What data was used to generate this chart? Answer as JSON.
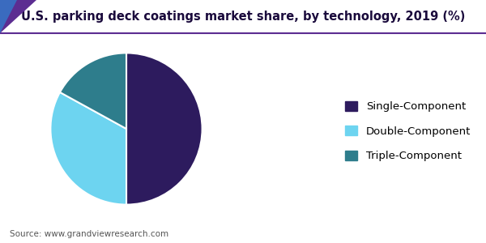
{
  "title": "U.S. parking deck coatings market share, by technology, 2019 (%)",
  "labels": [
    "Single-Component",
    "Double-Component",
    "Triple-Component"
  ],
  "values": [
    50,
    33,
    17
  ],
  "colors": [
    "#2d1b5e",
    "#6dd4f0",
    "#2e7d8c"
  ],
  "startangle": 90,
  "counterclock": false,
  "source_text": "Source: www.grandviewresearch.com",
  "title_fontsize": 10.5,
  "legend_fontsize": 9.5,
  "source_fontsize": 7.5,
  "background_color": "#ffffff",
  "wedge_linewidth": 1.5,
  "wedge_edgecolor": "#ffffff",
  "title_color": "#1a0a3c",
  "source_color": "#555555",
  "line_color": "#5c2d91",
  "corner_color1": "#5c2d91",
  "corner_color2": "#3a6bbf"
}
